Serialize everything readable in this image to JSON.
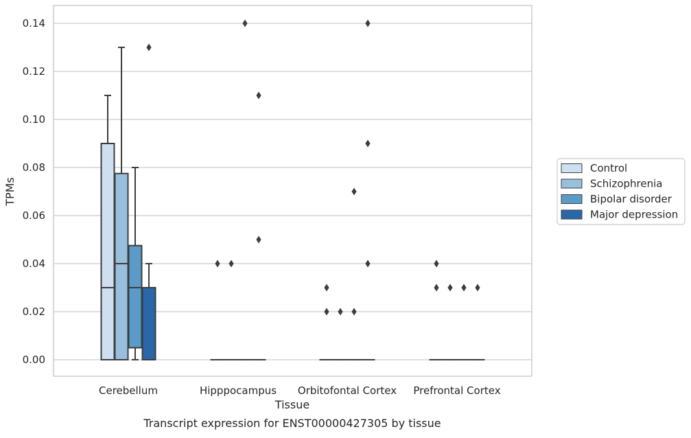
{
  "caption": "Transcript expression for ENST00000427305 by tissue",
  "chart_data": {
    "type": "box",
    "title": "",
    "xlabel": "Tissue",
    "ylabel": "TPMs",
    "ylim": [
      -0.007,
      0.147
    ],
    "yticks": [
      0.0,
      0.02,
      0.04,
      0.06,
      0.08,
      0.1,
      0.12,
      0.14
    ],
    "ytick_labels": [
      "0.00",
      "0.02",
      "0.04",
      "0.06",
      "0.08",
      "0.10",
      "0.12",
      "0.14"
    ],
    "grid": "horizontal",
    "legend_position": "right",
    "categories": [
      "Cerebellum",
      "Hipppocampus",
      "Orbitofontal Cortex",
      "Prefrontal Cortex"
    ],
    "series": [
      {
        "name": "Control",
        "color": "#cddff0",
        "boxes": [
          {
            "q1": 0.0,
            "median": 0.03,
            "q3": 0.09,
            "whisker_low": 0.0,
            "whisker_high": 0.11,
            "outliers": []
          },
          {
            "q1": 0.0,
            "median": 0.0,
            "q3": 0.0,
            "whisker_low": 0.0,
            "whisker_high": 0.0,
            "outliers": [
              0.04
            ]
          },
          {
            "q1": 0.0,
            "median": 0.0,
            "q3": 0.0,
            "whisker_low": 0.0,
            "whisker_high": 0.0,
            "outliers": [
              0.03,
              0.02
            ]
          },
          {
            "q1": 0.0,
            "median": 0.0,
            "q3": 0.0,
            "whisker_low": 0.0,
            "whisker_high": 0.0,
            "outliers": [
              0.04,
              0.03
            ]
          }
        ]
      },
      {
        "name": "Schizophrenia",
        "color": "#98c0dd",
        "boxes": [
          {
            "q1": 0.0,
            "median": 0.04,
            "q3": 0.0775,
            "whisker_low": 0.0,
            "whisker_high": 0.13,
            "outliers": []
          },
          {
            "q1": 0.0,
            "median": 0.0,
            "q3": 0.0,
            "whisker_low": 0.0,
            "whisker_high": 0.0,
            "outliers": [
              0.04
            ]
          },
          {
            "q1": 0.0,
            "median": 0.0,
            "q3": 0.0,
            "whisker_low": 0.0,
            "whisker_high": 0.0,
            "outliers": [
              0.02
            ]
          },
          {
            "q1": 0.0,
            "median": 0.0,
            "q3": 0.0,
            "whisker_low": 0.0,
            "whisker_high": 0.0,
            "outliers": [
              0.03
            ]
          }
        ]
      },
      {
        "name": "Bipolar disorder",
        "color": "#5a9bc8",
        "boxes": [
          {
            "q1": 0.005,
            "median": 0.03,
            "q3": 0.0475,
            "whisker_low": 0.0,
            "whisker_high": 0.08,
            "outliers": []
          },
          {
            "q1": 0.0,
            "median": 0.0,
            "q3": 0.0,
            "whisker_low": 0.0,
            "whisker_high": 0.0,
            "outliers": [
              0.14
            ]
          },
          {
            "q1": 0.0,
            "median": 0.0,
            "q3": 0.0,
            "whisker_low": 0.0,
            "whisker_high": 0.0,
            "outliers": [
              0.07,
              0.02
            ]
          },
          {
            "q1": 0.0,
            "median": 0.0,
            "q3": 0.0,
            "whisker_low": 0.0,
            "whisker_high": 0.0,
            "outliers": [
              0.03
            ]
          }
        ]
      },
      {
        "name": "Major depression",
        "color": "#2967a8",
        "boxes": [
          {
            "q1": 0.0,
            "median": 0.03,
            "q3": 0.03,
            "whisker_low": 0.0,
            "whisker_high": 0.04,
            "outliers": [
              0.13
            ]
          },
          {
            "q1": 0.0,
            "median": 0.0,
            "q3": 0.0,
            "whisker_low": 0.0,
            "whisker_high": 0.0,
            "outliers": [
              0.11,
              0.05
            ]
          },
          {
            "q1": 0.0,
            "median": 0.0,
            "q3": 0.0,
            "whisker_low": 0.0,
            "whisker_high": 0.0,
            "outliers": [
              0.14,
              0.09,
              0.04
            ]
          },
          {
            "q1": 0.0,
            "median": 0.0,
            "q3": 0.0,
            "whisker_low": 0.0,
            "whisker_high": 0.0,
            "outliers": [
              0.03
            ]
          }
        ]
      }
    ]
  }
}
